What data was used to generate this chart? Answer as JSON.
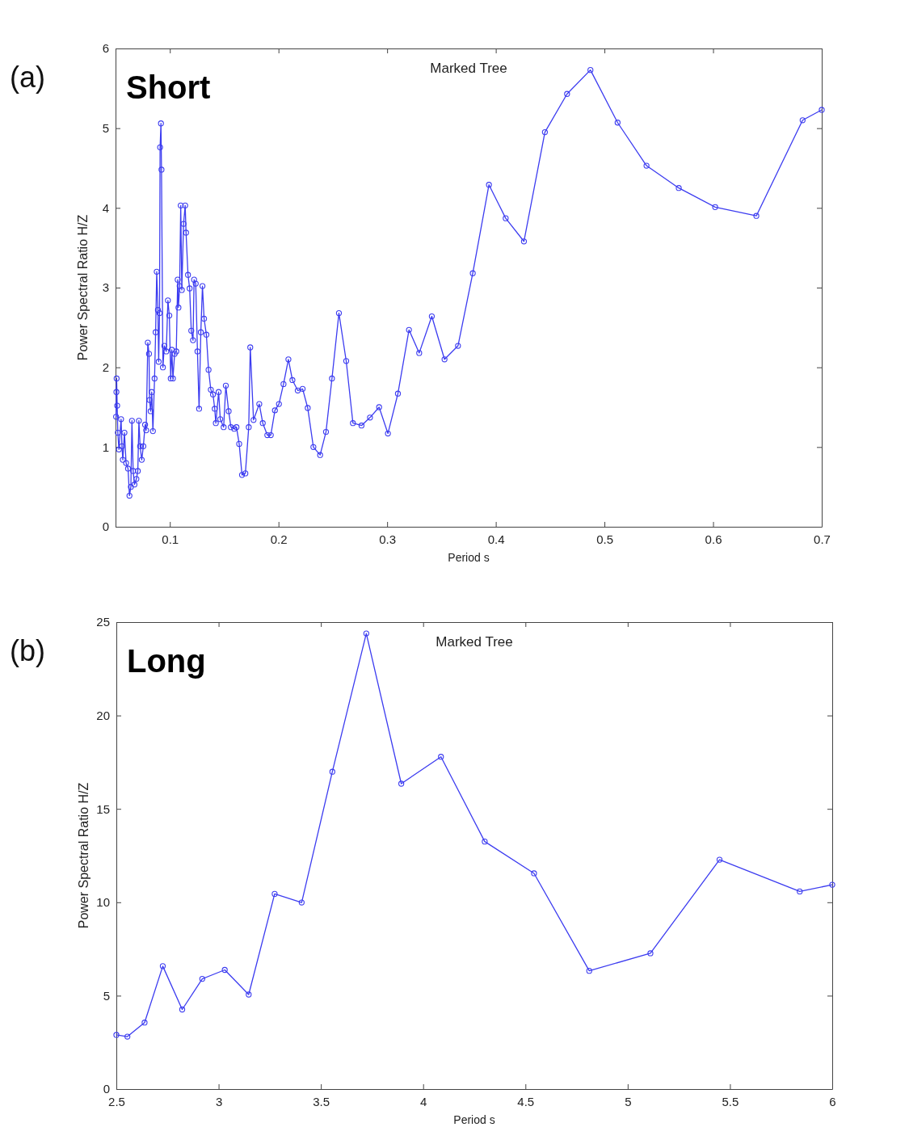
{
  "chart_data": [
    {
      "type": "line",
      "title": "Marked Tree",
      "xlabel": "Period s",
      "ylabel": "Power Spectral Ratio H/Z",
      "annotations": [
        "(a)",
        "Short"
      ],
      "xlim": [
        0.05,
        0.7
      ],
      "ylim": [
        0,
        6
      ],
      "xticks": [
        0.1,
        0.2,
        0.3,
        0.4,
        0.5,
        0.6,
        0.7
      ],
      "yticks": [
        0,
        1,
        2,
        3,
        4,
        5,
        6
      ],
      "grid": false,
      "marker": "circle",
      "line_style": "solid",
      "series": [
        {
          "color": "#3c3cf0",
          "x": [
            0.0505,
            0.0508,
            0.051,
            0.0515,
            0.0521,
            0.0531,
            0.0551,
            0.0559,
            0.0567,
            0.0582,
            0.0597,
            0.0615,
            0.0628,
            0.0641,
            0.0651,
            0.0662,
            0.0674,
            0.0692,
            0.0705,
            0.0715,
            0.0726,
            0.0741,
            0.0756,
            0.0772,
            0.0782,
            0.0797,
            0.0808,
            0.0813,
            0.0823,
            0.0833,
            0.0844,
            0.0859,
            0.0869,
            0.0879,
            0.089,
            0.0897,
            0.0905,
            0.091,
            0.0918,
            0.0923,
            0.0936,
            0.0949,
            0.0967,
            0.0982,
            0.0995,
            0.1008,
            0.1018,
            0.1028,
            0.1044,
            0.1059,
            0.1072,
            0.1079,
            0.109,
            0.11,
            0.111,
            0.1126,
            0.1141,
            0.1149,
            0.1167,
            0.1182,
            0.1197,
            0.1213,
            0.1223,
            0.1238,
            0.1254,
            0.1269,
            0.1285,
            0.13,
            0.1315,
            0.1336,
            0.1356,
            0.1377,
            0.1397,
            0.1413,
            0.1423,
            0.1449,
            0.1464,
            0.1495,
            0.1515,
            0.1541,
            0.1562,
            0.1592,
            0.1613,
            0.1638,
            0.1664,
            0.1695,
            0.1726,
            0.174,
            0.177,
            0.1823,
            0.1855,
            0.1897,
            0.1929,
            0.1967,
            0.2004,
            0.2046,
            0.2091,
            0.2128,
            0.2177,
            0.2222,
            0.2269,
            0.2321,
            0.2383,
            0.2437,
            0.2492,
            0.2556,
            0.2623,
            0.2685,
            0.2764,
            0.2842,
            0.2926,
            0.3007,
            0.3099,
            0.3201,
            0.3295,
            0.3411,
            0.3528,
            0.3652,
            0.3788,
            0.3937,
            0.4091,
            0.4259,
            0.4452,
            0.4656,
            0.4871,
            0.5121,
            0.5387,
            0.5684,
            0.6019,
            0.6398,
            0.6824,
            0.7
          ],
          "values": [
            1.38,
            1.69,
            1.86,
            1.52,
            1.18,
            0.97,
            1.35,
            1.01,
            0.84,
            1.18,
            0.8,
            0.73,
            0.39,
            0.5,
            1.33,
            0.7,
            0.53,
            0.6,
            0.7,
            1.33,
            1.01,
            0.84,
            1.01,
            1.28,
            1.21,
            2.31,
            2.17,
            1.59,
            1.45,
            1.69,
            1.2,
            1.86,
            2.44,
            3.2,
            2.72,
            2.07,
            2.68,
            4.76,
            5.06,
            4.48,
            2.0,
            2.27,
            2.2,
            2.84,
            2.65,
            1.86,
            2.22,
            1.86,
            2.17,
            2.2,
            3.1,
            2.75,
            3.02,
            4.03,
            2.97,
            3.8,
            4.03,
            3.69,
            3.16,
            2.99,
            2.46,
            2.34,
            3.1,
            3.05,
            2.2,
            1.48,
            2.44,
            3.02,
            2.61,
            2.41,
            1.97,
            1.72,
            1.66,
            1.48,
            1.3,
            1.69,
            1.35,
            1.25,
            1.77,
            1.45,
            1.25,
            1.23,
            1.25,
            1.04,
            0.65,
            0.67,
            1.25,
            2.25,
            1.34,
            1.54,
            1.3,
            1.15,
            1.15,
            1.46,
            1.54,
            1.79,
            2.1,
            1.84,
            1.71,
            1.73,
            1.49,
            1.0,
            0.9,
            1.19,
            1.86,
            2.68,
            2.08,
            1.3,
            1.27,
            1.37,
            1.5,
            1.17,
            1.67,
            2.47,
            2.18,
            2.64,
            2.1,
            2.27,
            3.18,
            4.29,
            3.87,
            3.58,
            4.95,
            5.43,
            5.73,
            5.07,
            4.53,
            4.25,
            4.01,
            3.9,
            5.1,
            5.23
          ]
        }
      ]
    },
    {
      "type": "line",
      "title": "Marked Tree",
      "xlabel": "Period s",
      "ylabel": "Power Spectral Ratio H/Z",
      "annotations": [
        "(b)",
        "Long"
      ],
      "xlim": [
        2.5,
        6
      ],
      "ylim": [
        0,
        25
      ],
      "xticks": [
        2.5,
        3,
        3.5,
        4,
        4.5,
        5,
        5.5,
        6
      ],
      "yticks": [
        0,
        5,
        10,
        15,
        20,
        25
      ],
      "grid": false,
      "marker": "circle",
      "line_style": "solid",
      "series": [
        {
          "color": "#3c3cf0",
          "x": [
            2.5,
            2.554,
            2.638,
            2.727,
            2.822,
            2.92,
            3.03,
            3.147,
            3.274,
            3.406,
            3.556,
            3.722,
            3.893,
            4.087,
            4.301,
            4.542,
            4.812,
            5.111,
            5.449,
            5.841,
            6.0
          ],
          "values": [
            2.9,
            2.81,
            3.56,
            6.58,
            4.26,
            5.9,
            6.38,
            5.06,
            10.45,
            9.99,
            16.99,
            24.39,
            16.35,
            17.79,
            13.25,
            11.55,
            6.33,
            7.27,
            12.28,
            10.58,
            10.94
          ]
        }
      ]
    }
  ]
}
